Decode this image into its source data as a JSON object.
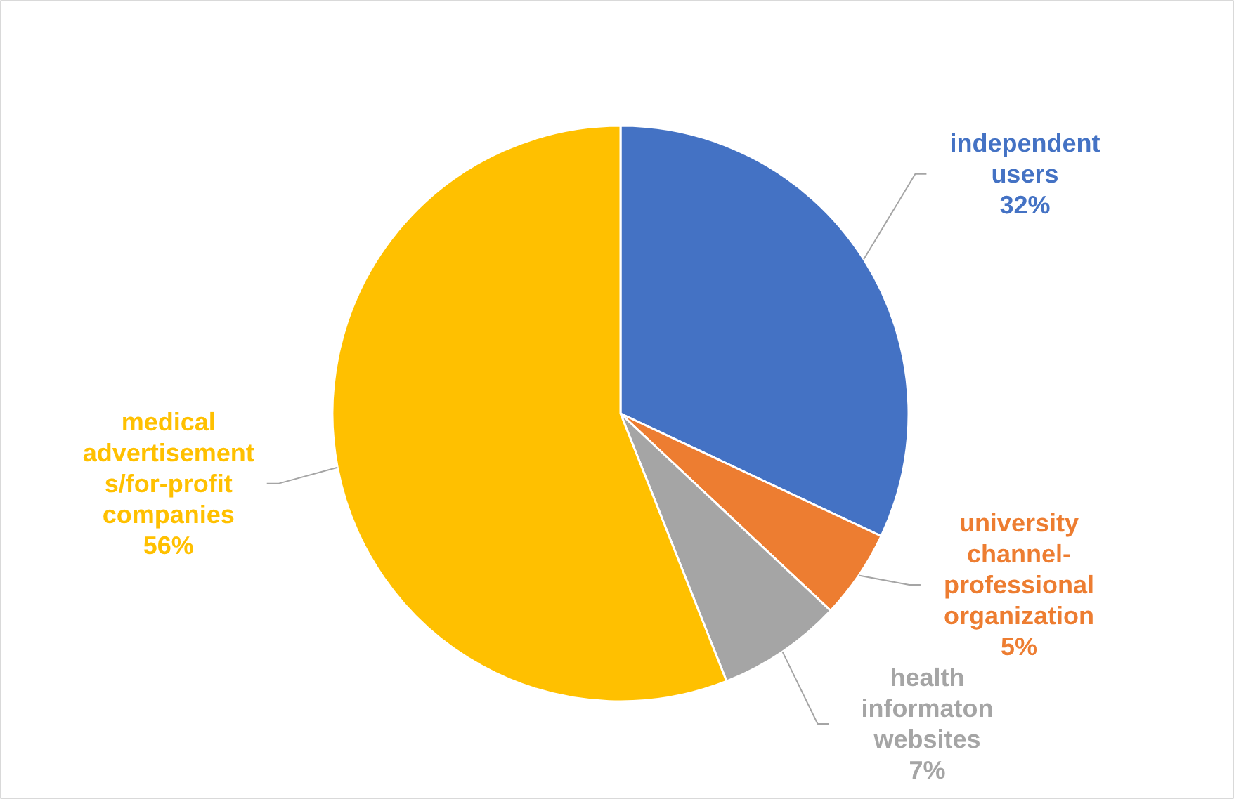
{
  "chart_data": {
    "type": "pie",
    "categories": [
      "independent users",
      "university channel-professional organization",
      "health informaton websites",
      "medical advertisements/for-profit companies"
    ],
    "values": [
      32,
      5,
      7,
      56
    ],
    "colors": [
      "#4472c4",
      "#ed7d31",
      "#a5a5a5",
      "#ffc000"
    ],
    "value_labels": [
      "32%",
      "5%",
      "7%",
      "56%"
    ]
  }
}
